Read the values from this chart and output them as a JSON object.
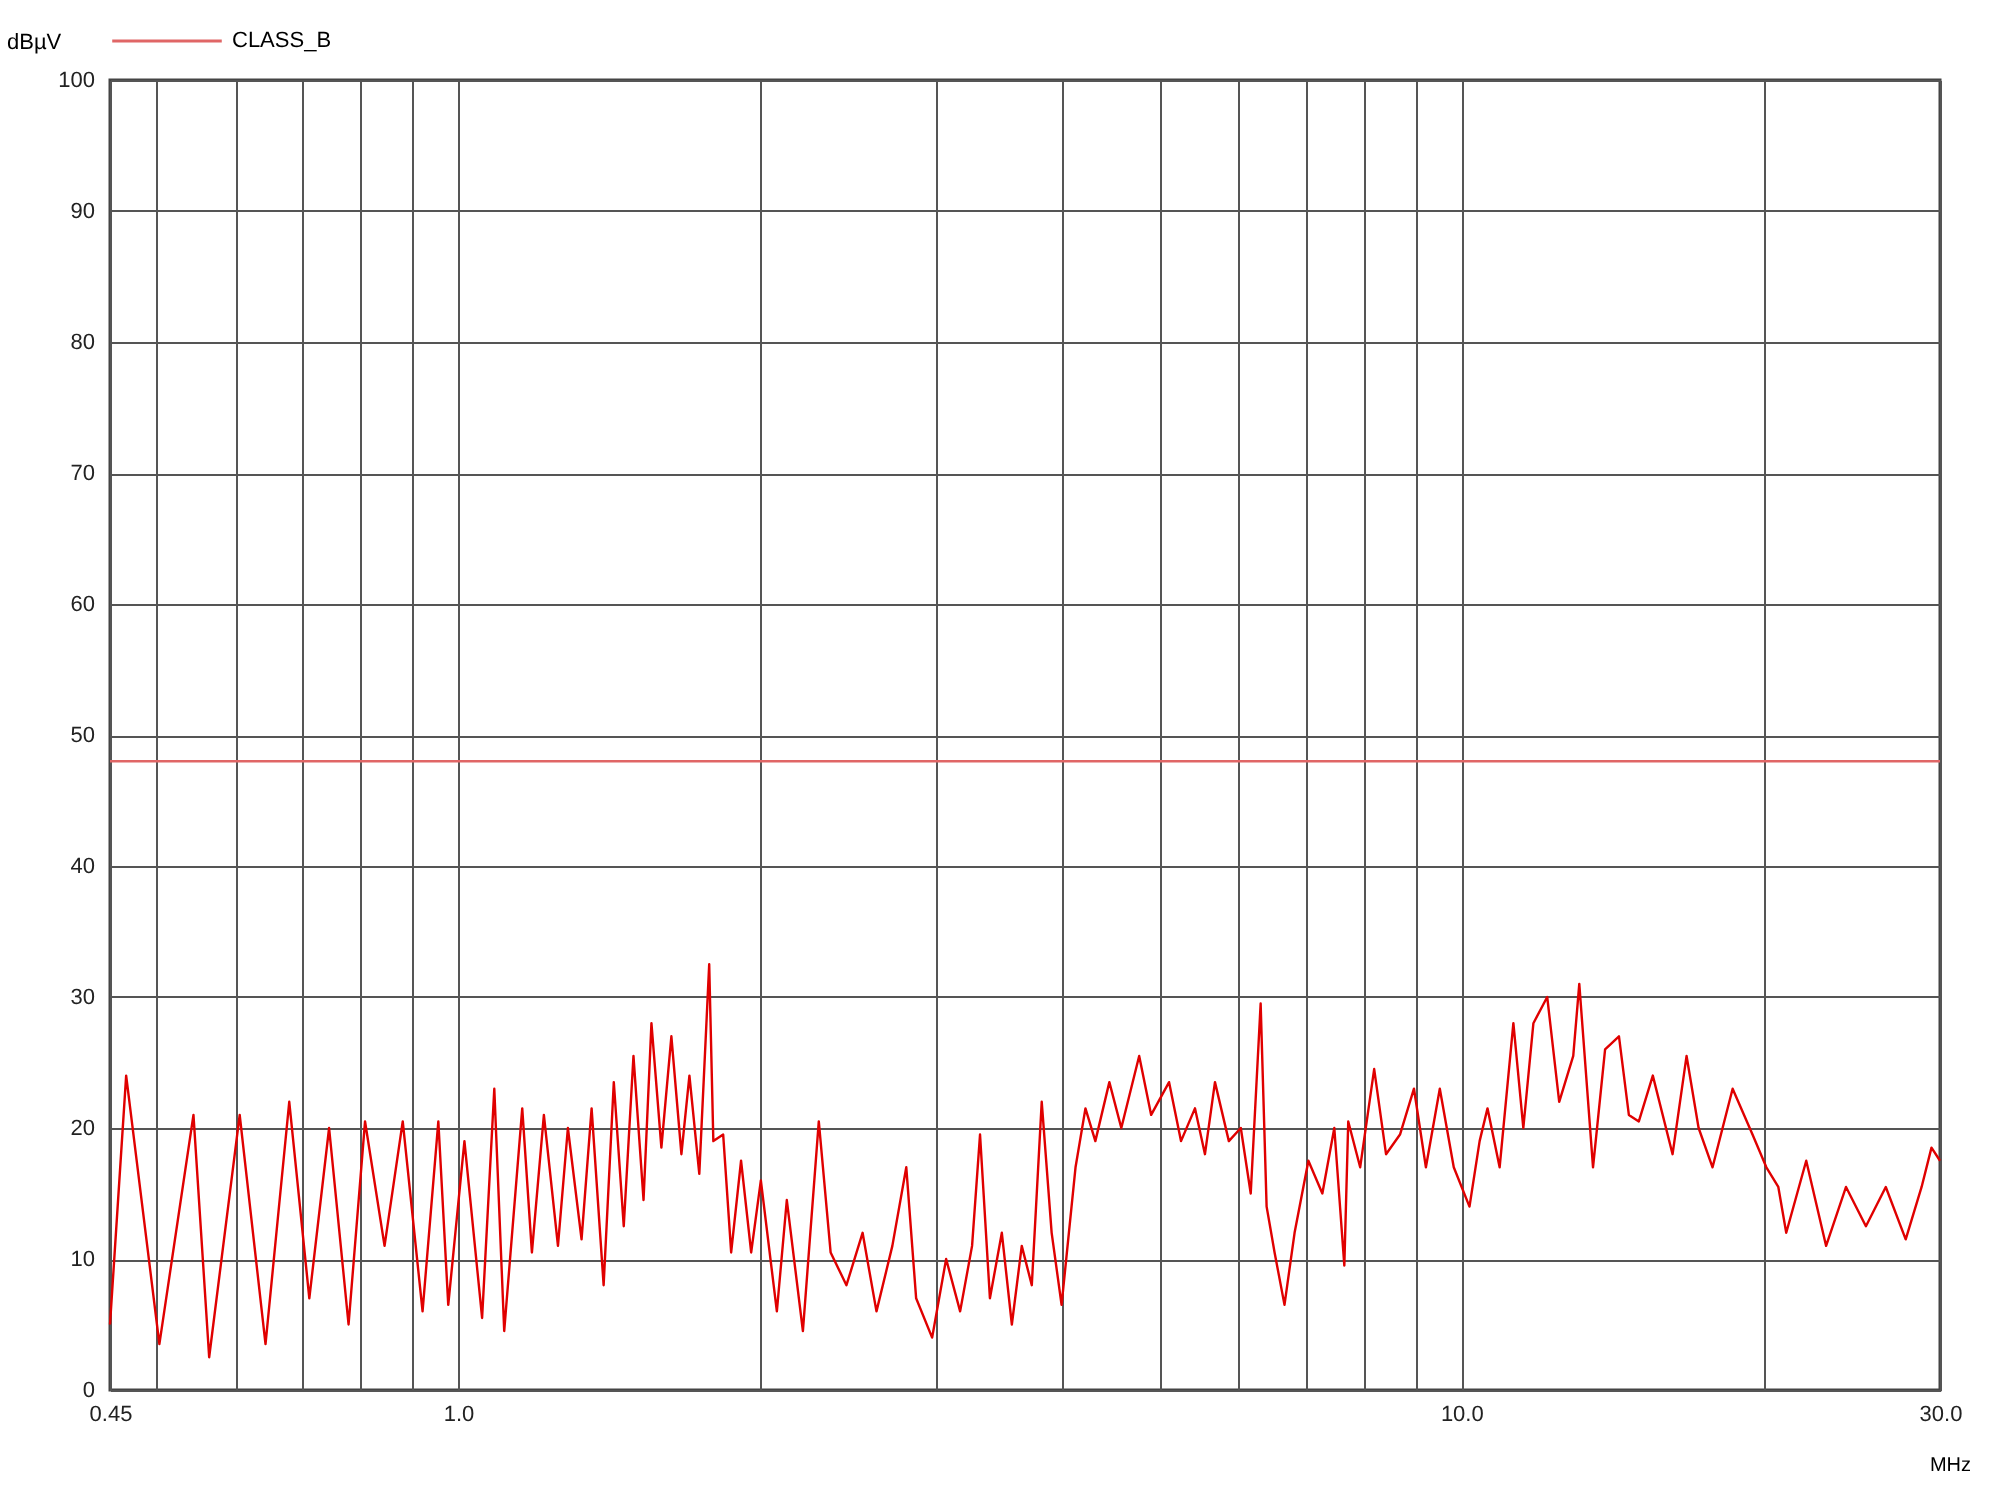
{
  "chart_data": {
    "type": "line",
    "xlabel": "MHz",
    "ylabel": "dBµV",
    "log": "x",
    "grid": true,
    "legend": "top",
    "marker": "none",
    "line_style": "solid",
    "xlim": [
      0.45,
      30
    ],
    "ylim": [
      0,
      100
    ],
    "xticks": [
      0.45,
      {
        "value": 0.5,
        "label": null
      },
      {
        "value": 0.6,
        "label": null
      },
      {
        "value": 0.7,
        "label": null
      },
      {
        "value": 0.8,
        "label": null
      },
      {
        "value": 0.9,
        "label": null
      },
      {
        "value": 1,
        "label": "1.0"
      },
      {
        "value": 2,
        "label": null
      },
      {
        "value": 3,
        "label": null
      },
      {
        "value": 4,
        "label": null
      },
      {
        "value": 5,
        "label": null
      },
      {
        "value": 6,
        "label": null
      },
      {
        "value": 7,
        "label": null
      },
      {
        "value": 8,
        "label": null
      },
      {
        "value": 9,
        "label": null
      },
      {
        "value": 10,
        "label": "10.0"
      },
      {
        "value": 20,
        "label": null
      },
      {
        "value": 30,
        "label": "30.0"
      }
    ],
    "yticks": [
      0,
      10,
      20,
      30,
      40,
      50,
      60,
      70,
      80,
      90,
      100
    ],
    "series": [
      {
        "name": "CLASS_B",
        "color": "#e06666",
        "x": [
          0.45,
          30
        ],
        "values": [
          48,
          48
        ]
      },
      {
        "color": "#e00000",
        "x": [
          0.45,
          0.467,
          0.504,
          0.545,
          0.565,
          0.606,
          0.643,
          0.679,
          0.711,
          0.744,
          0.778,
          0.808,
          0.845,
          0.881,
          0.922,
          0.956,
          0.978,
          1.015,
          1.057,
          1.087,
          1.112,
          1.159,
          1.185,
          1.218,
          1.258,
          1.287,
          1.328,
          1.359,
          1.397,
          1.43,
          1.463,
          1.496,
          1.531,
          1.559,
          1.595,
          1.632,
          1.67,
          1.701,
          1.74,
          1.78,
          1.797,
          1.838,
          1.872,
          1.915,
          1.96,
          2.004,
          2.079,
          2.127,
          2.207,
          2.289,
          2.352,
          2.439,
          2.531,
          2.613,
          2.71,
          2.798,
          2.862,
          2.969,
          3.066,
          3.166,
          3.254,
          3.314,
          3.39,
          3.484,
          3.565,
          3.647,
          3.732,
          3.818,
          3.906,
          3.996,
          4.126,
          4.221,
          4.318,
          4.459,
          4.583,
          4.775,
          4.908,
          5.114,
          5.256,
          5.427,
          5.553,
          5.682,
          5.866,
          6.029,
          6.168,
          6.31,
          6.397,
          6.515,
          6.665,
          6.821,
          7.041,
          7.27,
          7.472,
          7.646,
          7.715,
          7.929,
          8.188,
          8.414,
          8.688,
          8.971,
          9.22,
          9.519,
          9.829,
          10.19,
          10.43,
          10.62,
          10.92,
          11.27,
          11.53,
          11.8,
          12.18,
          12.52,
          12.93,
          13.11,
          13.53,
          13.91,
          14.36,
          14.69,
          15.03,
          15.52,
          16.24,
          16.77,
          17.24,
          17.8,
          18.64,
          19.51,
          20.14,
          20.7,
          21.08,
          22.07,
          23.1,
          24.18,
          25.31,
          26.49,
          27.73,
          28.76,
          29.42,
          30
        ],
        "values": [
          5,
          24,
          3.5,
          21,
          2.5,
          21,
          3.5,
          22,
          7,
          20,
          5,
          20.5,
          11,
          20.5,
          6,
          20.5,
          6.5,
          19,
          5.5,
          23,
          4.5,
          21.5,
          10.5,
          21,
          11,
          20,
          11.5,
          21.5,
          8,
          23.5,
          12.5,
          25.5,
          14.5,
          28,
          18.5,
          27,
          18,
          24,
          16.5,
          32.5,
          19,
          19.5,
          10.5,
          17.5,
          10.5,
          16,
          6,
          14.5,
          4.5,
          20.5,
          10.5,
          8,
          12,
          6,
          11,
          17,
          7,
          4,
          10,
          6,
          11,
          19.5,
          7,
          12,
          5,
          11,
          8,
          22,
          12,
          6.5,
          17,
          21.5,
          19,
          23.5,
          20,
          25.5,
          21,
          23.5,
          19,
          21.5,
          18,
          23.5,
          19,
          20,
          15,
          29.5,
          14,
          10.5,
          6.5,
          12,
          17.5,
          15,
          20,
          9.5,
          20.5,
          17,
          24.5,
          18,
          19.5,
          23,
          17,
          23,
          17,
          14,
          19,
          21.5,
          17,
          28,
          20,
          28,
          30,
          22,
          25.5,
          31,
          17,
          26,
          27,
          21,
          20.5,
          24,
          18,
          25.5,
          20,
          17,
          23,
          19.5,
          17,
          15.5,
          12,
          17.5,
          11,
          15.5,
          12.5,
          15.5,
          11.5,
          15.5,
          18.5,
          17.5
        ]
      }
    ]
  }
}
